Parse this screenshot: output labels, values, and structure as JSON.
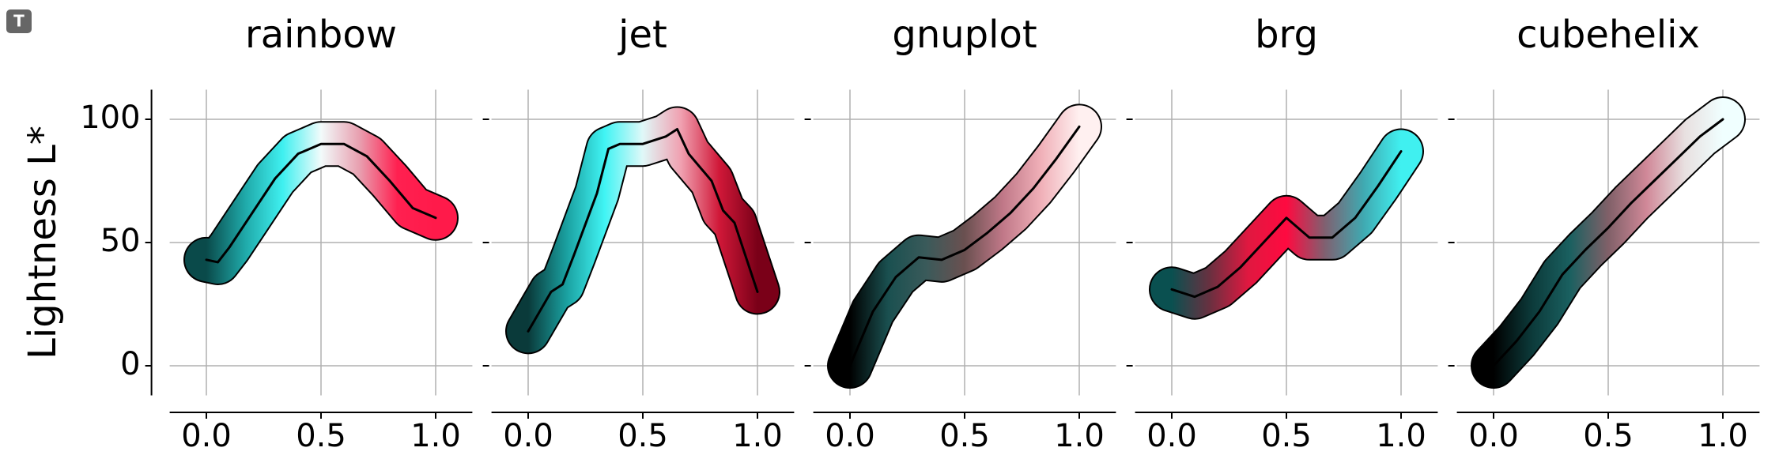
{
  "badge": "T",
  "chart_data": [
    {
      "type": "line",
      "title": "rainbow",
      "ylabel": "Lightness L*",
      "ytick_labels": true,
      "x": [
        0,
        0.05,
        0.1,
        0.2,
        0.3,
        0.4,
        0.5,
        0.6,
        0.7,
        0.8,
        0.9,
        1.0
      ],
      "series": [
        {
          "values": [
            43,
            42,
            48,
            62,
            76,
            86,
            90,
            90,
            85,
            75,
            64,
            60
          ],
          "colors": [
            "#0a4a4a",
            "#1fa8a8",
            "#3ff0f0",
            "#f2fbfb",
            "#e8a0b0",
            "#ff2050",
            "#ff1a4a"
          ]
        }
      ],
      "xlim": [
        -0.16,
        1.16
      ],
      "ylim": [
        -12,
        112
      ],
      "xticks": [
        {
          "value": 0,
          "label": "0.0"
        },
        {
          "value": 0.5,
          "label": "0.5"
        },
        {
          "value": 1.0,
          "label": "1.0"
        }
      ],
      "yticks": [
        0,
        50,
        100
      ],
      "grid": true
    },
    {
      "type": "line",
      "title": "jet",
      "ytick_labels": false,
      "x": [
        0,
        0.1,
        0.15,
        0.2,
        0.3,
        0.35,
        0.4,
        0.5,
        0.6,
        0.65,
        0.7,
        0.8,
        0.85,
        0.9,
        1.0
      ],
      "series": [
        {
          "values": [
            14,
            30,
            33,
            45,
            70,
            88,
            90,
            90,
            93,
            96,
            86,
            75,
            63,
            58,
            30
          ],
          "colors": [
            "#0a3a3a",
            "#1aa0a0",
            "#40f4f4",
            "#e0f8f8",
            "#f0a0b0",
            "#d01838",
            "#7a0018"
          ]
        }
      ],
      "xlim": [
        -0.16,
        1.16
      ],
      "ylim": [
        -12,
        112
      ],
      "xticks": [
        {
          "value": 0,
          "label": "0.0"
        },
        {
          "value": 0.5,
          "label": "0.5"
        },
        {
          "value": 1.0,
          "label": "1.0"
        }
      ],
      "yticks": [
        0,
        50,
        100
      ],
      "grid": true
    },
    {
      "type": "line",
      "title": "gnuplot",
      "ytick_labels": false,
      "x": [
        0,
        0.1,
        0.2,
        0.3,
        0.4,
        0.5,
        0.6,
        0.7,
        0.8,
        0.9,
        1.0
      ],
      "series": [
        {
          "values": [
            0,
            22,
            36,
            44,
            43,
            47,
            54,
            62,
            72,
            84,
            97
          ],
          "colors": [
            "#000000",
            "#1a5050",
            "#3a5a5a",
            "#6a5050",
            "#c07888",
            "#f0b0b8",
            "#fff0f0"
          ]
        }
      ],
      "xlim": [
        -0.16,
        1.16
      ],
      "ylim": [
        -12,
        112
      ],
      "xticks": [
        {
          "value": 0,
          "label": "0.0"
        },
        {
          "value": 0.5,
          "label": "0.5"
        },
        {
          "value": 1.0,
          "label": "1.0"
        }
      ],
      "yticks": [
        0,
        50,
        100
      ],
      "grid": true
    },
    {
      "type": "line",
      "title": "brg",
      "ytick_labels": false,
      "x": [
        0,
        0.1,
        0.2,
        0.3,
        0.4,
        0.5,
        0.6,
        0.7,
        0.8,
        0.9,
        1.0
      ],
      "series": [
        {
          "values": [
            31,
            28,
            32,
            40,
            50,
            60,
            52,
            52,
            60,
            73,
            87
          ],
          "colors": [
            "#0a5050",
            "#6a3040",
            "#e01840",
            "#ff0a40",
            "#806070",
            "#40a8b0",
            "#40f0f0"
          ]
        }
      ],
      "xlim": [
        -0.16,
        1.16
      ],
      "ylim": [
        -12,
        112
      ],
      "xticks": [
        {
          "value": 0,
          "label": "0.0"
        },
        {
          "value": 0.5,
          "label": "0.5"
        },
        {
          "value": 1.0,
          "label": "1.0"
        }
      ],
      "yticks": [
        0,
        50,
        100
      ],
      "grid": true
    },
    {
      "type": "line",
      "title": "cubehelix",
      "ytick_labels": false,
      "x": [
        0,
        0.1,
        0.2,
        0.3,
        0.4,
        0.5,
        0.6,
        0.7,
        0.8,
        0.9,
        1.0
      ],
      "series": [
        {
          "values": [
            0,
            10,
            22,
            37,
            47,
            56,
            66,
            75,
            84,
            93,
            100
          ],
          "colors": [
            "#000000",
            "#0c3a3a",
            "#1a6060",
            "#806068",
            "#d08898",
            "#e8e0e0",
            "#f0ffff"
          ]
        }
      ],
      "xlim": [
        -0.16,
        1.16
      ],
      "ylim": [
        -12,
        112
      ],
      "xticks": [
        {
          "value": 0,
          "label": "0.0"
        },
        {
          "value": 0.5,
          "label": "0.5"
        },
        {
          "value": 1.0,
          "label": "1.0"
        }
      ],
      "yticks": [
        0,
        50,
        100
      ],
      "grid": true
    }
  ]
}
